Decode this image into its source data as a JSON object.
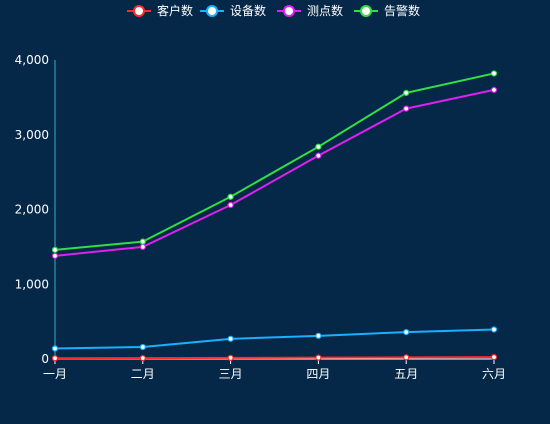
{
  "chart_data": {
    "type": "line",
    "categories": [
      "一月",
      "二月",
      "三月",
      "四月",
      "五月",
      "六月"
    ],
    "series": [
      {
        "name": "客户数",
        "color": "#ff2b2b",
        "values": [
          10,
          12,
          15,
          18,
          22,
          25
        ]
      },
      {
        "name": "设备数",
        "color": "#1ab0ff",
        "values": [
          140,
          160,
          270,
          310,
          360,
          395
        ]
      },
      {
        "name": "测点数",
        "color": "#e020f0",
        "values": [
          1380,
          1500,
          2060,
          2720,
          3350,
          3600
        ]
      },
      {
        "name": "告警数",
        "color": "#33dd44",
        "values": [
          1460,
          1570,
          2170,
          2840,
          3560,
          3820
        ]
      }
    ],
    "title": "",
    "xlabel": "",
    "ylabel": "",
    "ylim": [
      0,
      4000
    ],
    "yticks": [
      "0",
      "1,000",
      "2,000",
      "3,000",
      "4,000"
    ],
    "grid": false,
    "legend_position": "top-center"
  },
  "style": {
    "background": "#062848",
    "axis_color": "#ffffff",
    "y_axis_line_color": "#2fb4c8",
    "marker_fill": "#ffffff"
  }
}
